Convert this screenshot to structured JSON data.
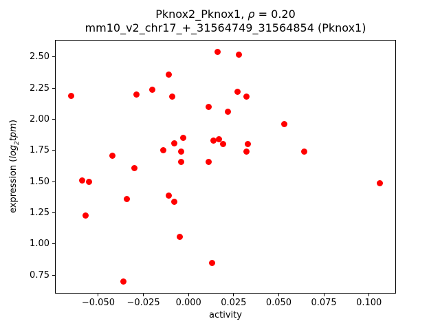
{
  "figure": {
    "title_line1": {
      "prefix": "Pknox2_Pknox1, ",
      "rho": "ρ",
      "suffix": " = 0.20"
    },
    "title_line2": "mm10_v2_chr17_+_31564749_31564854 (Pknox1)",
    "xlabel": "activity",
    "ylabel": {
      "prefix": "expression (",
      "log": "log",
      "sub": "2",
      "tpm": "tpm",
      "suffix": ")"
    }
  },
  "chart_data": {
    "type": "scatter",
    "title": "Pknox2_Pknox1, ρ = 0.20",
    "subtitle": "mm10_v2_chr17_+_31564749_31564854 (Pknox1)",
    "xlabel": "activity",
    "ylabel": "expression (log2 tpm)",
    "correlation_rho": 0.2,
    "marker_color": "#ff0000",
    "grid": false,
    "legend": null,
    "xlim": [
      -0.0736,
      0.1146
    ],
    "ylim": [
      0.608,
      2.632
    ],
    "xticks": {
      "values": [
        -0.05,
        -0.025,
        0.0,
        0.025,
        0.05,
        0.075,
        0.1
      ],
      "labels": [
        "−0.050",
        "−0.025",
        "0.000",
        "0.025",
        "0.050",
        "0.075",
        "0.100"
      ]
    },
    "yticks": {
      "values": [
        0.75,
        1.0,
        1.25,
        1.5,
        1.75,
        2.0,
        2.25,
        2.5
      ],
      "labels": [
        "0.75",
        "1.00",
        "1.25",
        "1.50",
        "1.75",
        "2.00",
        "2.25",
        "2.50"
      ]
    },
    "points": [
      [
        -0.065,
        2.19
      ],
      [
        -0.029,
        2.2
      ],
      [
        -0.02,
        2.24
      ],
      [
        -0.011,
        2.36
      ],
      [
        -0.009,
        2.18
      ],
      [
        0.016,
        2.54
      ],
      [
        0.028,
        2.52
      ],
      [
        0.027,
        2.22
      ],
      [
        0.032,
        2.18
      ],
      [
        0.011,
        2.1
      ],
      [
        0.022,
        2.06
      ],
      [
        0.053,
        1.96
      ],
      [
        -0.003,
        1.85
      ],
      [
        -0.008,
        1.81
      ],
      [
        -0.014,
        1.75
      ],
      [
        -0.004,
        1.74
      ],
      [
        -0.004,
        1.66
      ],
      [
        0.014,
        1.83
      ],
      [
        0.017,
        1.84
      ],
      [
        0.019,
        1.8
      ],
      [
        0.011,
        1.66
      ],
      [
        -0.042,
        1.71
      ],
      [
        0.064,
        1.74
      ],
      [
        -0.03,
        1.61
      ],
      [
        -0.059,
        1.51
      ],
      [
        -0.055,
        1.5
      ],
      [
        -0.034,
        1.36
      ],
      [
        -0.011,
        1.39
      ],
      [
        -0.008,
        1.34
      ],
      [
        -0.057,
        1.23
      ],
      [
        -0.005,
        1.06
      ],
      [
        0.013,
        0.85
      ],
      [
        -0.036,
        0.7
      ],
      [
        0.106,
        1.49
      ],
      [
        0.033,
        1.8
      ],
      [
        0.032,
        1.74
      ]
    ]
  }
}
